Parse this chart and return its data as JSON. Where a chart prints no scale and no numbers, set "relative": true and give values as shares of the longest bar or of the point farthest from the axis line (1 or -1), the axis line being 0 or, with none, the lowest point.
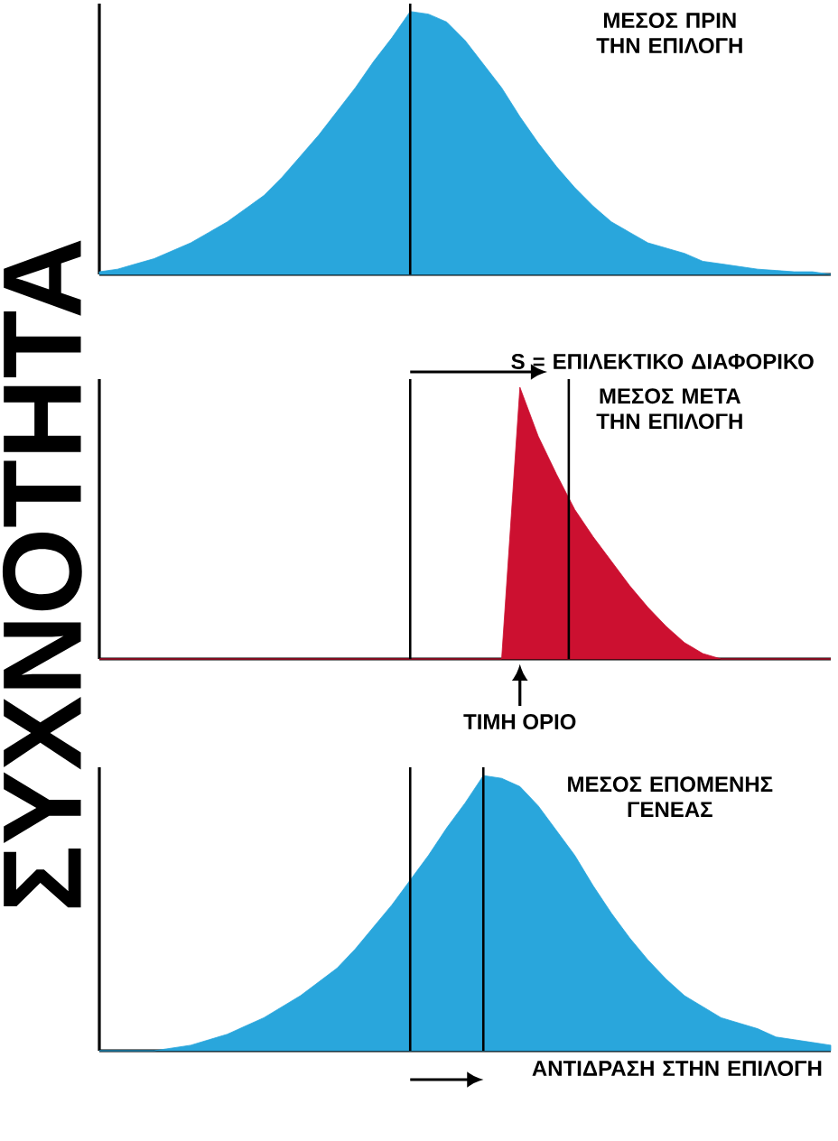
{
  "chart_data": [
    {
      "type": "area",
      "relative": true,
      "color": "#29a6dc",
      "tick_labels": false,
      "categories": [
        null,
        null,
        null,
        null,
        null,
        null,
        null,
        null,
        null,
        null,
        null,
        null,
        null,
        null,
        null,
        null,
        null,
        null,
        null,
        null,
        null,
        null,
        null,
        null,
        null,
        null,
        null,
        null,
        null,
        null,
        null,
        null,
        null,
        null,
        null,
        null,
        null,
        null,
        null,
        null,
        null
      ],
      "values": [
        0.01,
        0.02,
        0.04,
        0.06,
        0.09,
        0.12,
        0.16,
        0.2,
        0.25,
        0.3,
        0.37,
        0.45,
        0.53,
        0.62,
        0.71,
        0.81,
        0.9,
        1,
        0.99,
        0.96,
        0.89,
        0.8,
        0.71,
        0.6,
        0.5,
        0.41,
        0.33,
        0.26,
        0.2,
        0.16,
        0.12,
        0.1,
        0.08,
        0.05,
        0.04,
        0.03,
        0.02,
        0.015,
        0.01,
        0.01,
        0
      ],
      "annotations": [
        "ΜΕΣΟΣ ΠΡΙΝ ΤΗΝ ΕΠΙΛΟΓΗ"
      ]
    },
    {
      "type": "area",
      "relative": true,
      "color": "#cc1030",
      "tick_labels": false,
      "ylabel": "ΣΥΧΝΟΤΗΤΑ",
      "categories": [
        null,
        null,
        null,
        null,
        null,
        null,
        null,
        null,
        null,
        null,
        null,
        null,
        null,
        null,
        null,
        null,
        null,
        null,
        null,
        null,
        null,
        null,
        null,
        null,
        null,
        null,
        null,
        null,
        null,
        null,
        null,
        null,
        null,
        null,
        null,
        null,
        null,
        null,
        null,
        null,
        null
      ],
      "values": [
        0,
        0,
        0,
        0,
        0,
        0,
        0,
        0,
        0,
        0,
        0,
        0,
        0,
        0,
        0,
        0,
        0,
        0,
        0,
        0,
        0,
        0,
        0,
        1,
        0.82,
        0.68,
        0.55,
        0.45,
        0.36,
        0.27,
        0.19,
        0.12,
        0.06,
        0.02,
        0,
        0,
        0,
        0,
        0,
        0,
        0
      ],
      "annotations": [
        "S = ΕΠΙΛΕΚΤΙΚΟ ΔΙΑΦΟΡΙΚΟ",
        "ΜΕΣΟΣ ΜΕΤΑ ΤΗΝ ΕΠΙΛΟΓΗ",
        "ΤΙΜΗ ΟΡΙΟ"
      ]
    },
    {
      "type": "area",
      "relative": true,
      "color": "#29a6dc",
      "tick_labels": false,
      "categories": [
        null,
        null,
        null,
        null,
        null,
        null,
        null,
        null,
        null,
        null,
        null,
        null,
        null,
        null,
        null,
        null,
        null,
        null,
        null,
        null,
        null,
        null,
        null,
        null,
        null,
        null,
        null,
        null,
        null,
        null,
        null,
        null,
        null,
        null,
        null,
        null,
        null,
        null,
        null,
        null,
        null
      ],
      "values": [
        0,
        0,
        0,
        0,
        0.01,
        0.02,
        0.04,
        0.06,
        0.09,
        0.12,
        0.16,
        0.2,
        0.25,
        0.3,
        0.37,
        0.45,
        0.53,
        0.62,
        0.71,
        0.81,
        0.9,
        1,
        0.99,
        0.96,
        0.89,
        0.8,
        0.71,
        0.6,
        0.5,
        0.41,
        0.33,
        0.26,
        0.2,
        0.16,
        0.12,
        0.1,
        0.08,
        0.05,
        0.04,
        0.03,
        0.02
      ],
      "annotations": [
        "ΜΕΣΟΣ ΕΠΟΜΕΝΗΣ ΓΕΝΕΑΣ",
        "ΑΝΤΙΔΡΑΣΗ ΣΤΗΝ ΕΠΙΛΟΓΗ"
      ]
    }
  ]
}
